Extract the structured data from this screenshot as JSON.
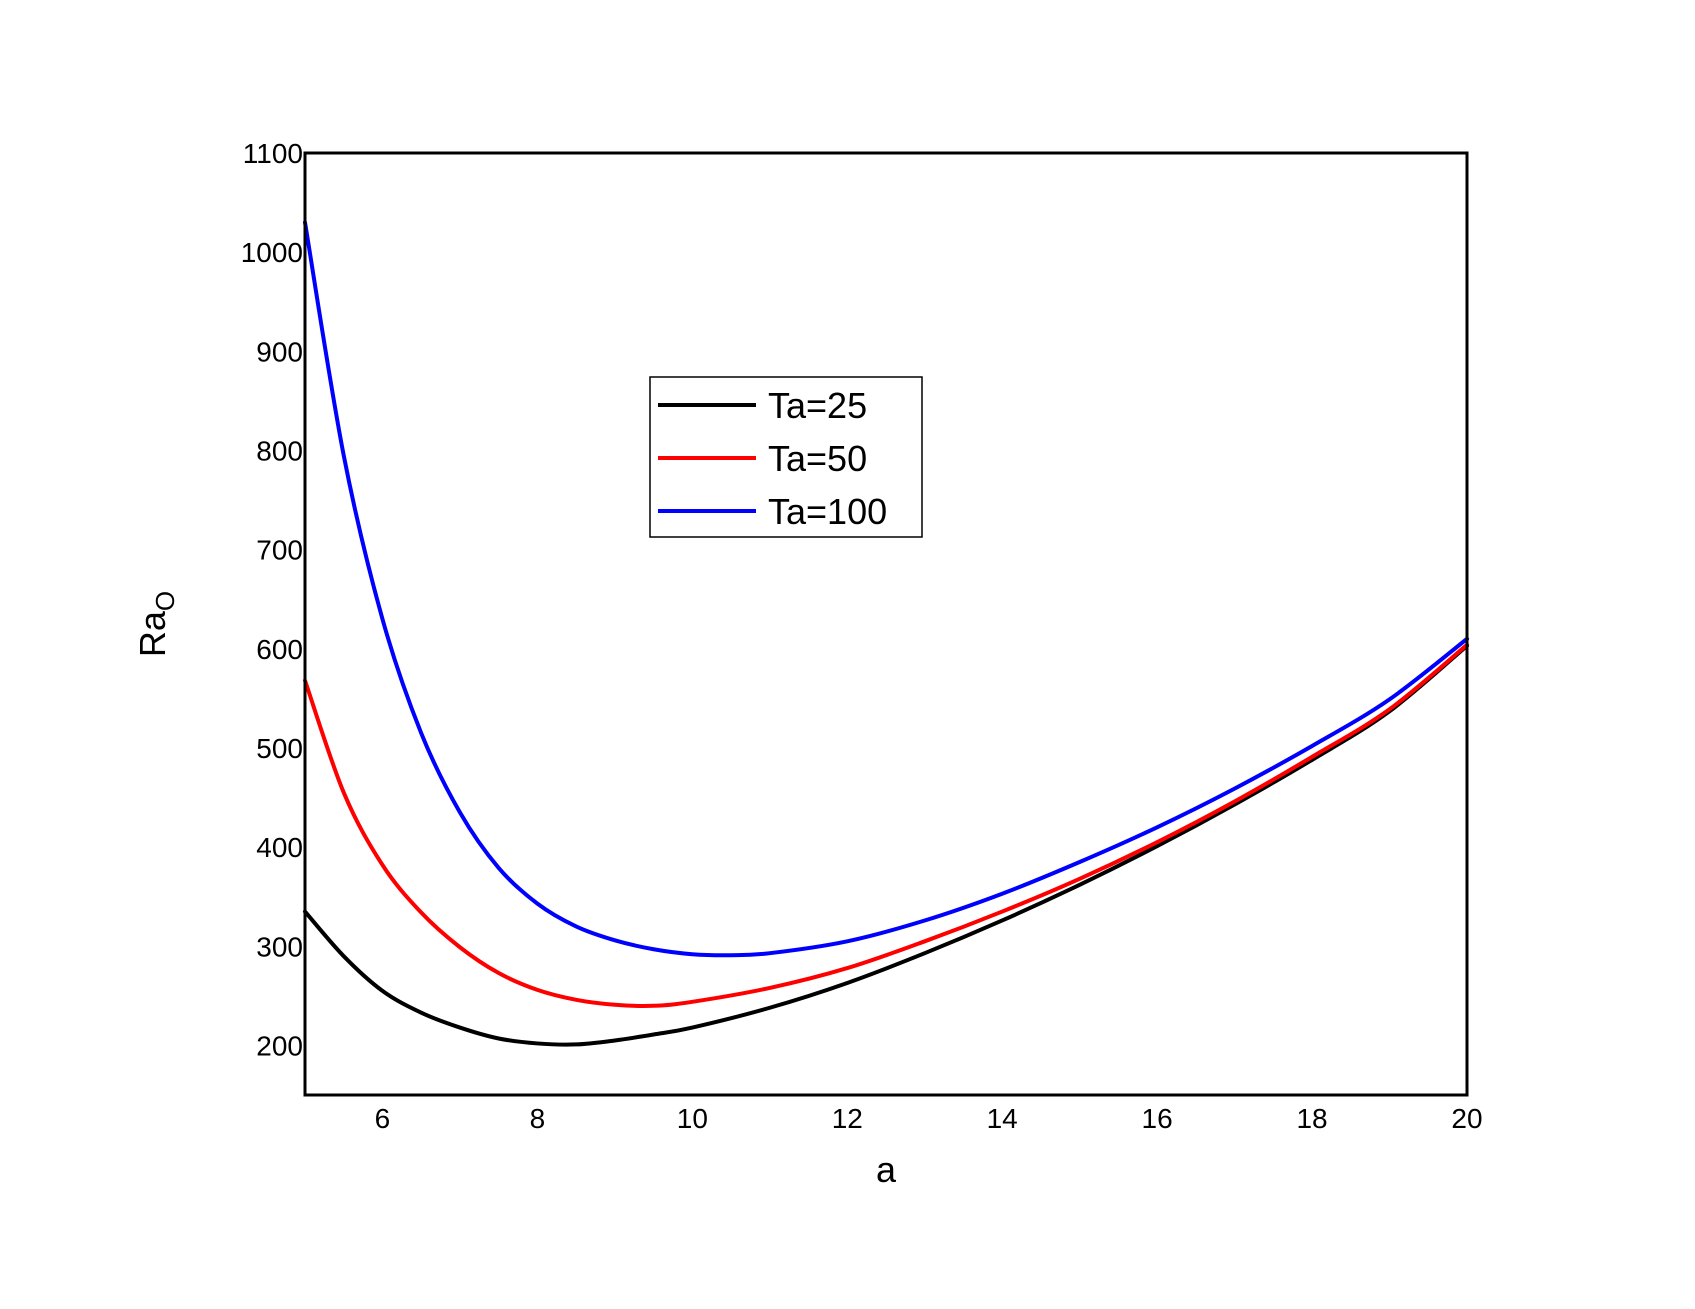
{
  "chart_data": {
    "type": "line",
    "title": "",
    "xlabel": "a",
    "ylabel": "Ra",
    "ylabel_subscript": "O",
    "xlim": [
      5,
      20
    ],
    "ylim": [
      150,
      1100
    ],
    "xticks": [
      6,
      8,
      10,
      12,
      14,
      16,
      18,
      20
    ],
    "yticks": [
      200,
      300,
      400,
      500,
      600,
      700,
      800,
      900,
      1000,
      1100
    ],
    "grid": false,
    "legend_position": "upper-center",
    "series": [
      {
        "name": "Ta=25",
        "color": "#000000",
        "x": [
          5,
          5.5,
          6,
          6.5,
          7,
          7.5,
          8,
          8.5,
          9,
          9.5,
          10,
          11,
          12,
          13,
          14,
          15,
          16,
          17,
          18,
          19,
          20
        ],
        "y": [
          335,
          290,
          255,
          233,
          218,
          207,
          202,
          201,
          205,
          211,
          218,
          238,
          263,
          293,
          326,
          362,
          401,
          443,
          488,
          537,
          603
        ]
      },
      {
        "name": "Ta=50",
        "color": "#ff0000",
        "x": [
          5,
          5.5,
          6,
          6.5,
          7,
          7.5,
          8,
          8.5,
          9,
          9.5,
          10,
          11,
          12,
          13,
          14,
          15,
          16,
          17,
          18,
          19,
          20
        ],
        "y": [
          568,
          455,
          382,
          334,
          299,
          273,
          256,
          246,
          241,
          240,
          244,
          258,
          278,
          305,
          335,
          368,
          405,
          446,
          491,
          539,
          604
        ]
      },
      {
        "name": "Ta=100",
        "color": "#0000ff",
        "x": [
          5,
          5.5,
          6,
          6.5,
          7,
          7.5,
          8,
          8.5,
          9,
          9.5,
          10,
          10.5,
          11,
          12,
          13,
          14,
          15,
          16,
          17,
          18,
          19,
          20
        ],
        "y": [
          1030,
          795,
          630,
          515,
          435,
          379,
          343,
          320,
          306,
          297,
          292,
          291,
          293,
          305,
          326,
          353,
          385,
          420,
          459,
          502,
          549,
          610
        ]
      }
    ]
  }
}
